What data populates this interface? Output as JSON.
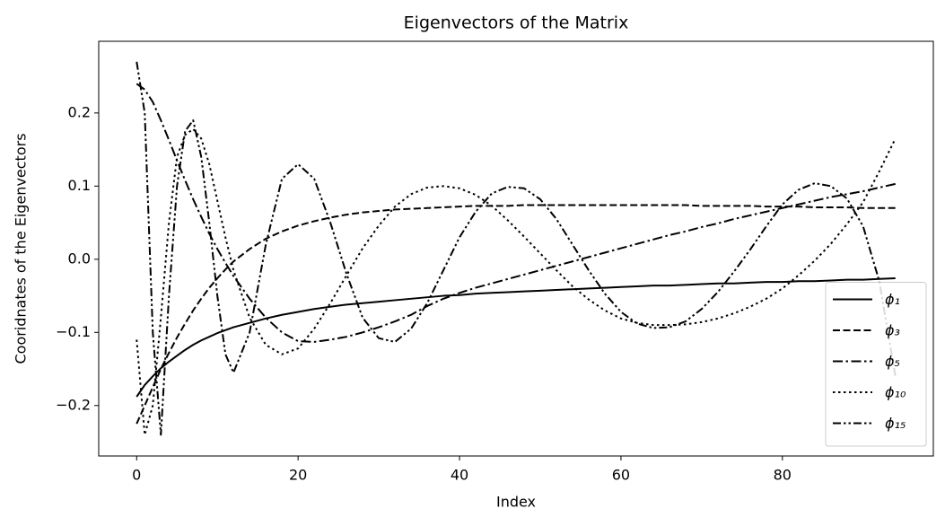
{
  "chart_data": {
    "type": "line",
    "title": "Eigenvectors of the Matrix",
    "x_label": "Index",
    "y_label": "Cooridnates of the Eigenvectors",
    "x": [
      0,
      1,
      2,
      3,
      4,
      5,
      6,
      7,
      8,
      9,
      10,
      11,
      12,
      14,
      16,
      18,
      20,
      22,
      24,
      26,
      28,
      30,
      32,
      34,
      36,
      38,
      40,
      42,
      44,
      46,
      48,
      50,
      52,
      54,
      56,
      58,
      60,
      62,
      64,
      66,
      68,
      70,
      72,
      74,
      76,
      78,
      80,
      82,
      84,
      86,
      88,
      90,
      92,
      94
    ],
    "series": [
      {
        "name": "ϕ₁",
        "color": "#000000",
        "linestyle": "solid",
        "values": [
          -0.188,
          -0.172,
          -0.16,
          -0.149,
          -0.14,
          -0.132,
          -0.124,
          -0.117,
          -0.111,
          -0.106,
          -0.101,
          -0.097,
          -0.093,
          -0.087,
          -0.081,
          -0.076,
          -0.072,
          -0.068,
          -0.065,
          -0.062,
          -0.06,
          -0.058,
          -0.056,
          -0.054,
          -0.052,
          -0.05,
          -0.049,
          -0.047,
          -0.046,
          -0.045,
          -0.044,
          -0.043,
          -0.042,
          -0.041,
          -0.04,
          -0.039,
          -0.038,
          -0.037,
          -0.036,
          -0.036,
          -0.035,
          -0.034,
          -0.033,
          -0.033,
          -0.032,
          -0.031,
          -0.031,
          -0.03,
          -0.03,
          -0.029,
          -0.028,
          -0.028,
          -0.027,
          -0.026
        ]
      },
      {
        "name": "ϕ₃",
        "color": "#000000",
        "linestyle": "dashed",
        "values": [
          -0.225,
          -0.2,
          -0.175,
          -0.15,
          -0.128,
          -0.107,
          -0.088,
          -0.07,
          -0.054,
          -0.039,
          -0.026,
          -0.014,
          -0.003,
          0.014,
          0.028,
          0.038,
          0.046,
          0.052,
          0.057,
          0.061,
          0.064,
          0.066,
          0.068,
          0.069,
          0.07,
          0.071,
          0.072,
          0.073,
          0.073,
          0.073,
          0.074,
          0.074,
          0.074,
          0.074,
          0.074,
          0.074,
          0.074,
          0.074,
          0.074,
          0.074,
          0.074,
          0.073,
          0.073,
          0.073,
          0.073,
          0.072,
          0.072,
          0.072,
          0.071,
          0.071,
          0.071,
          0.07,
          0.07,
          0.07
        ]
      },
      {
        "name": "ϕ₅",
        "color": "#000000",
        "linestyle": "dashdot",
        "values": [
          0.24,
          0.232,
          0.215,
          0.19,
          0.163,
          0.135,
          0.108,
          0.082,
          0.058,
          0.035,
          0.014,
          -0.005,
          -0.023,
          -0.054,
          -0.08,
          -0.1,
          -0.112,
          -0.113,
          -0.11,
          -0.106,
          -0.1,
          -0.093,
          -0.085,
          -0.076,
          -0.064,
          -0.054,
          -0.046,
          -0.039,
          -0.033,
          -0.027,
          -0.021,
          -0.015,
          -0.009,
          -0.003,
          0.003,
          0.009,
          0.015,
          0.021,
          0.027,
          0.033,
          0.038,
          0.044,
          0.049,
          0.055,
          0.06,
          0.065,
          0.07,
          0.075,
          0.08,
          0.085,
          0.089,
          0.093,
          0.098,
          0.103
        ]
      },
      {
        "name": "ϕ₁₀",
        "color": "#000000",
        "linestyle": "dotted",
        "values": [
          -0.11,
          -0.24,
          -0.2,
          -0.08,
          0.05,
          0.14,
          0.17,
          0.178,
          0.165,
          0.13,
          0.08,
          0.03,
          -0.015,
          -0.08,
          -0.117,
          -0.13,
          -0.122,
          -0.095,
          -0.06,
          -0.022,
          0.015,
          0.046,
          0.072,
          0.089,
          0.098,
          0.1,
          0.097,
          0.088,
          0.073,
          0.053,
          0.031,
          0.008,
          -0.015,
          -0.037,
          -0.055,
          -0.07,
          -0.081,
          -0.087,
          -0.09,
          -0.09,
          -0.089,
          -0.086,
          -0.081,
          -0.074,
          -0.065,
          -0.054,
          -0.04,
          -0.022,
          -0.002,
          0.021,
          0.048,
          0.078,
          0.12,
          0.165
        ]
      },
      {
        "name": "ϕ₁₅",
        "color": "#000000",
        "linestyle": "dashdotdot",
        "values": [
          0.27,
          0.2,
          -0.1,
          -0.24,
          -0.05,
          0.1,
          0.175,
          0.19,
          0.14,
          0.05,
          -0.05,
          -0.13,
          -0.155,
          -0.1,
          0.02,
          0.11,
          0.13,
          0.11,
          0.05,
          -0.02,
          -0.08,
          -0.108,
          -0.113,
          -0.095,
          -0.06,
          -0.015,
          0.03,
          0.065,
          0.09,
          0.099,
          0.097,
          0.082,
          0.055,
          0.02,
          -0.015,
          -0.047,
          -0.072,
          -0.088,
          -0.094,
          -0.093,
          -0.085,
          -0.068,
          -0.045,
          -0.017,
          0.013,
          0.045,
          0.075,
          0.095,
          0.104,
          0.1,
          0.083,
          0.045,
          -0.03,
          -0.16
        ]
      }
    ],
    "xlim": [
      -4.7,
      98.7
    ],
    "ylim": [
      -0.269,
      0.298
    ],
    "xticks": [
      0,
      20,
      40,
      60,
      80
    ],
    "yticks": [
      {
        "value": -0.2,
        "label": "−0.2"
      },
      {
        "value": -0.1,
        "label": "−0.1"
      },
      {
        "value": 0,
        "label": "0.0"
      },
      0.1,
      0.2
    ],
    "legend": "lower right",
    "grid": false
  }
}
